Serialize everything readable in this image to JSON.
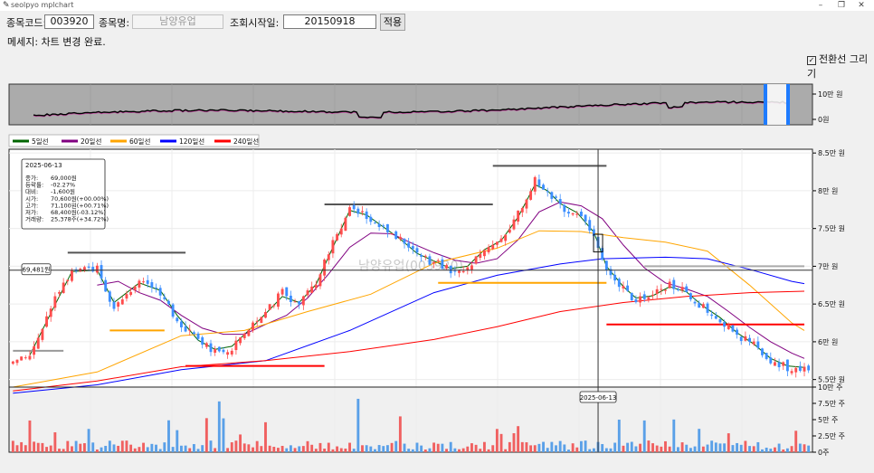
{
  "window": {
    "title": "seolpyo mplchart",
    "minimize": "–",
    "maximize": "❐",
    "close": "✕"
  },
  "form": {
    "code_label": "종목코드:",
    "code_value": "003920",
    "name_label": "종목명:",
    "name_value": "남양유업",
    "start_label": "조회시작일:",
    "start_value": "20150918",
    "apply_button": "적용"
  },
  "message": "메세지: 차트 변경 완료.",
  "checkbox": {
    "mark": "✓",
    "label": "전환선 그리기",
    "checked": true
  },
  "chart_data": {
    "type": "candlestick",
    "title": "",
    "watermark": "남양유업(003920)",
    "legend": [
      {
        "name": "5일선",
        "color": "#006400"
      },
      {
        "name": "20일선",
        "color": "#800080"
      },
      {
        "name": "60일선",
        "color": "#ffa500"
      },
      {
        "name": "120일선",
        "color": "#0000ff"
      },
      {
        "name": "240일선",
        "color": "#ff0000"
      }
    ],
    "colors": {
      "up": "#ff4d4d",
      "down": "#3d8fff",
      "vol_up": "#f06060",
      "vol_down": "#5aa0e8"
    },
    "price_ylim": [
      54000,
      85500
    ],
    "price_ticks": [
      {
        "v": 55000,
        "t": "5.5만 원"
      },
      {
        "v": 60000,
        "t": "6만 원"
      },
      {
        "v": 65000,
        "t": "6.5만 원"
      },
      {
        "v": 70000,
        "t": "7만 원"
      },
      {
        "v": 75000,
        "t": "7.5만 원"
      },
      {
        "v": 80000,
        "t": "8만 원"
      },
      {
        "v": 85000,
        "t": "8.5만 원"
      }
    ],
    "volume_ylim": [
      0,
      100000
    ],
    "volume_ticks": [
      {
        "v": 0,
        "t": "0주"
      },
      {
        "v": 25000,
        "t": "2.5만 주"
      },
      {
        "v": 50000,
        "t": "5만 주"
      },
      {
        "v": 75000,
        "t": "7.5만 주"
      },
      {
        "v": 100000,
        "t": "10만 주"
      }
    ],
    "overview_ticks": [
      {
        "v": 0,
        "t": "0원"
      },
      {
        "v": 100000,
        "t": "10만 원"
      }
    ],
    "crosshair": {
      "price_label": "69,481원",
      "date_label": "2025-06-13",
      "price": 69481,
      "index": 139
    },
    "info_box": {
      "date": "2025-06-13",
      "rows": [
        {
          "k": "종가:",
          "v": "69,000원"
        },
        {
          "k": "등락률:",
          "v": "-02.27%"
        },
        {
          "k": "대비:",
          "v": "-1,600원"
        },
        {
          "k": "시가:",
          "v": "70,600원(+00.00%)"
        },
        {
          "k": "고가:",
          "v": "71,100원(+00.71%)"
        },
        {
          "k": "저가:",
          "v": "68,400원(-03.12%)"
        },
        {
          "k": "거래량:",
          "v": "25,378주(+34.72%)"
        }
      ]
    },
    "anchors": [
      {
        "i": 0,
        "c": 57200
      },
      {
        "i": 4,
        "c": 58200
      },
      {
        "i": 9,
        "c": 64500
      },
      {
        "i": 14,
        "c": 69500
      },
      {
        "i": 20,
        "c": 69800
      },
      {
        "i": 24,
        "c": 64300
      },
      {
        "i": 30,
        "c": 68500
      },
      {
        "i": 35,
        "c": 66500
      },
      {
        "i": 39,
        "c": 62800
      },
      {
        "i": 44,
        "c": 60000
      },
      {
        "i": 48,
        "c": 58800
      },
      {
        "i": 52,
        "c": 59200
      },
      {
        "i": 56,
        "c": 61800
      },
      {
        "i": 60,
        "c": 64000
      },
      {
        "i": 64,
        "c": 66500
      },
      {
        "i": 68,
        "c": 64800
      },
      {
        "i": 72,
        "c": 68000
      },
      {
        "i": 76,
        "c": 73200
      },
      {
        "i": 80,
        "c": 77800
      },
      {
        "i": 84,
        "c": 76800
      },
      {
        "i": 88,
        "c": 75000
      },
      {
        "i": 92,
        "c": 73500
      },
      {
        "i": 96,
        "c": 71500
      },
      {
        "i": 100,
        "c": 70500
      },
      {
        "i": 104,
        "c": 69500
      },
      {
        "i": 108,
        "c": 70000
      },
      {
        "i": 112,
        "c": 72500
      },
      {
        "i": 116,
        "c": 73500
      },
      {
        "i": 120,
        "c": 77000
      },
      {
        "i": 124,
        "c": 81500
      },
      {
        "i": 127,
        "c": 79800
      },
      {
        "i": 130,
        "c": 78000
      },
      {
        "i": 134,
        "c": 77000
      },
      {
        "i": 138,
        "c": 74000
      },
      {
        "i": 141,
        "c": 69000
      },
      {
        "i": 145,
        "c": 67000
      },
      {
        "i": 148,
        "c": 65500
      },
      {
        "i": 152,
        "c": 66200
      },
      {
        "i": 156,
        "c": 67500
      },
      {
        "i": 160,
        "c": 66500
      },
      {
        "i": 164,
        "c": 64500
      },
      {
        "i": 168,
        "c": 63000
      },
      {
        "i": 172,
        "c": 61000
      },
      {
        "i": 176,
        "c": 59500
      },
      {
        "i": 180,
        "c": 57500
      },
      {
        "i": 184,
        "c": 56600
      },
      {
        "i": 188,
        "c": 56500
      }
    ],
    "ma_lines": [
      {
        "name": "5일선",
        "pts": [
          [
            4,
            58200
          ],
          [
            9,
            63800
          ],
          [
            14,
            69300
          ],
          [
            20,
            69500
          ],
          [
            24,
            65200
          ],
          [
            30,
            67800
          ],
          [
            35,
            66800
          ],
          [
            39,
            63500
          ],
          [
            44,
            60200
          ],
          [
            48,
            59000
          ],
          [
            52,
            59400
          ],
          [
            56,
            61500
          ],
          [
            60,
            63700
          ],
          [
            64,
            66000
          ],
          [
            68,
            65200
          ],
          [
            72,
            67600
          ],
          [
            76,
            72500
          ],
          [
            80,
            77400
          ],
          [
            84,
            76800
          ],
          [
            88,
            75200
          ],
          [
            92,
            73600
          ],
          [
            96,
            71700
          ],
          [
            100,
            70700
          ],
          [
            104,
            69700
          ],
          [
            108,
            70000
          ],
          [
            112,
            72200
          ],
          [
            116,
            73400
          ],
          [
            120,
            76500
          ],
          [
            124,
            80800
          ],
          [
            127,
            80000
          ],
          [
            130,
            78300
          ],
          [
            134,
            77100
          ],
          [
            138,
            74500
          ],
          [
            141,
            70000
          ],
          [
            145,
            67300
          ],
          [
            148,
            65800
          ],
          [
            152,
            66100
          ],
          [
            156,
            67300
          ],
          [
            160,
            66600
          ],
          [
            164,
            64700
          ],
          [
            168,
            63200
          ],
          [
            172,
            61200
          ],
          [
            176,
            59700
          ],
          [
            180,
            57800
          ],
          [
            184,
            56800
          ],
          [
            188,
            56600
          ]
        ]
      },
      {
        "name": "20일선",
        "pts": [
          [
            20,
            67500
          ],
          [
            25,
            68000
          ],
          [
            30,
            66500
          ],
          [
            35,
            65500
          ],
          [
            40,
            63500
          ],
          [
            45,
            61800
          ],
          [
            50,
            61000
          ],
          [
            55,
            61000
          ],
          [
            60,
            62300
          ],
          [
            65,
            63500
          ],
          [
            70,
            65800
          ],
          [
            75,
            69000
          ],
          [
            80,
            72500
          ],
          [
            85,
            74400
          ],
          [
            90,
            74300
          ],
          [
            95,
            73000
          ],
          [
            100,
            71800
          ],
          [
            105,
            70800
          ],
          [
            110,
            70400
          ],
          [
            115,
            71000
          ],
          [
            120,
            73500
          ],
          [
            125,
            77200
          ],
          [
            130,
            78500
          ],
          [
            135,
            78000
          ],
          [
            140,
            76300
          ],
          [
            145,
            72800
          ],
          [
            150,
            69800
          ],
          [
            155,
            67800
          ],
          [
            160,
            67000
          ],
          [
            165,
            66000
          ],
          [
            170,
            64000
          ],
          [
            175,
            61900
          ],
          [
            180,
            60000
          ],
          [
            185,
            58500
          ],
          [
            188,
            57800
          ]
        ]
      },
      {
        "name": "60일선",
        "pts": [
          [
            0,
            54000
          ],
          [
            20,
            56000
          ],
          [
            40,
            60800
          ],
          [
            55,
            61500
          ],
          [
            70,
            64000
          ],
          [
            85,
            66300
          ],
          [
            100,
            70400
          ],
          [
            115,
            72400
          ],
          [
            125,
            74700
          ],
          [
            135,
            74600
          ],
          [
            145,
            73800
          ],
          [
            155,
            73200
          ],
          [
            165,
            72000
          ],
          [
            175,
            67500
          ],
          [
            185,
            62500
          ],
          [
            188,
            61500
          ]
        ]
      },
      {
        "name": "120일선",
        "pts": [
          [
            0,
            53200
          ],
          [
            20,
            54300
          ],
          [
            40,
            56300
          ],
          [
            60,
            57500
          ],
          [
            80,
            61500
          ],
          [
            100,
            66500
          ],
          [
            115,
            68800
          ],
          [
            130,
            70300
          ],
          [
            140,
            71000
          ],
          [
            155,
            71200
          ],
          [
            165,
            71000
          ],
          [
            175,
            69600
          ],
          [
            185,
            68000
          ],
          [
            188,
            67700
          ]
        ]
      },
      {
        "name": "240일선",
        "pts": [
          [
            0,
            53500
          ],
          [
            20,
            54800
          ],
          [
            40,
            56700
          ],
          [
            60,
            57500
          ],
          [
            80,
            58700
          ],
          [
            100,
            60300
          ],
          [
            115,
            62000
          ],
          [
            130,
            64000
          ],
          [
            145,
            65200
          ],
          [
            160,
            66000
          ],
          [
            175,
            66500
          ],
          [
            188,
            66700
          ]
        ]
      }
    ],
    "level_lines": [
      {
        "i0": 0,
        "i1": 12,
        "price": 58800,
        "color": "#999999"
      },
      {
        "i0": 13,
        "i1": 41,
        "price": 71800,
        "color": "#555555"
      },
      {
        "i0": 23,
        "i1": 36,
        "price": 61500,
        "color": "#ffa500"
      },
      {
        "i0": 41,
        "i1": 74,
        "price": 56800,
        "color": "#ff0000"
      },
      {
        "i0": 74,
        "i1": 114,
        "price": 78200,
        "color": "#555555"
      },
      {
        "i0": 101,
        "i1": 141,
        "price": 67800,
        "color": "#ffa500"
      },
      {
        "i0": 114,
        "i1": 141,
        "price": 83300,
        "color": "#555555"
      },
      {
        "i0": 141,
        "i1": 188,
        "price": 62300,
        "color": "#ff0000"
      },
      {
        "i0": 150,
        "i1": 188,
        "price": 70000,
        "color": "#aaaaaa"
      }
    ]
  }
}
